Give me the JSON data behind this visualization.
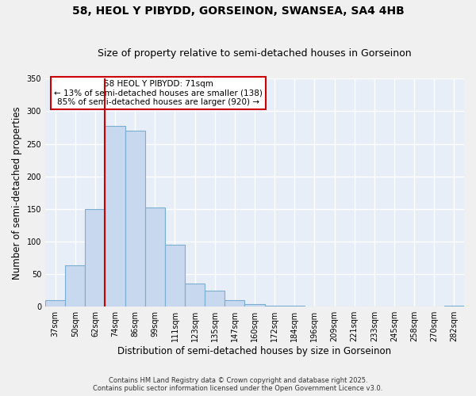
{
  "title": "58, HEOL Y PIBYDD, GORSEINON, SWANSEA, SA4 4HB",
  "subtitle": "Size of property relative to semi-detached houses in Gorseinon",
  "xlabel": "Distribution of semi-detached houses by size in Gorseinon",
  "ylabel": "Number of semi-detached properties",
  "bin_labels": [
    "37sqm",
    "50sqm",
    "62sqm",
    "74sqm",
    "86sqm",
    "99sqm",
    "111sqm",
    "123sqm",
    "135sqm",
    "147sqm",
    "160sqm",
    "172sqm",
    "184sqm",
    "196sqm",
    "209sqm",
    "221sqm",
    "233sqm",
    "245sqm",
    "258sqm",
    "270sqm",
    "282sqm"
  ],
  "bar_heights": [
    10,
    63,
    150,
    278,
    270,
    152,
    95,
    36,
    24,
    10,
    4,
    1,
    1,
    0,
    0,
    0,
    0,
    0,
    0,
    0,
    2
  ],
  "bar_color": "#c8d8ee",
  "bar_edge_color": "#7aaed0",
  "vline_x_idx": 2,
  "vline_color": "#cc0000",
  "ylim": [
    0,
    350
  ],
  "yticks": [
    0,
    50,
    100,
    150,
    200,
    250,
    300,
    350
  ],
  "annotation_box_title": "58 HEOL Y PIBYDD: 71sqm",
  "annotation_line1": "← 13% of semi-detached houses are smaller (138)",
  "annotation_line2": "85% of semi-detached houses are larger (920) →",
  "annotation_box_color": "#ffffff",
  "annotation_box_edge": "#cc0000",
  "footnote1": "Contains HM Land Registry data © Crown copyright and database right 2025.",
  "footnote2": "Contains public sector information licensed under the Open Government Licence v3.0.",
  "plot_bg_color": "#e8eef8",
  "fig_bg_color": "#f0f0f0",
  "grid_color": "#ffffff",
  "title_fontsize": 10,
  "subtitle_fontsize": 9,
  "axis_label_fontsize": 8.5,
  "tick_fontsize": 7
}
